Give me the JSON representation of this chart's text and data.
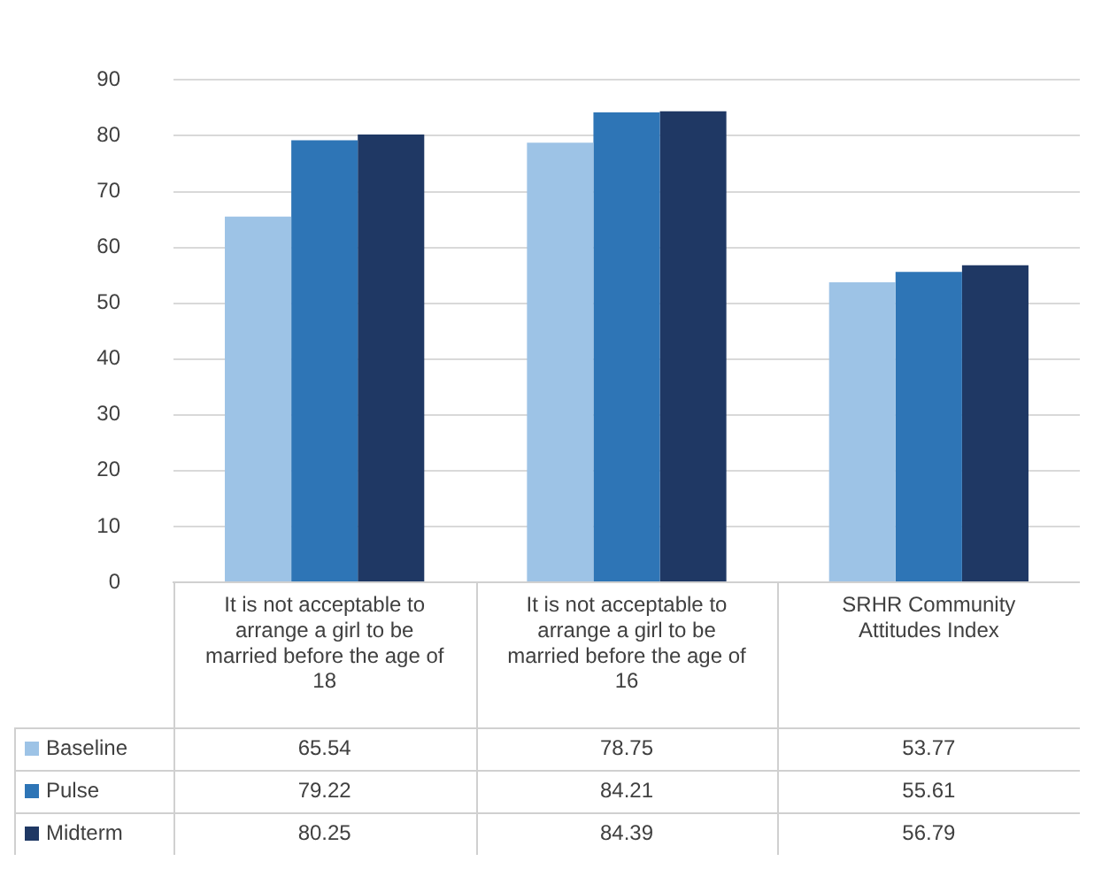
{
  "chart_data": {
    "type": "bar",
    "categories": [
      "It is not acceptable to arrange a girl to be married before the age of 18",
      "It is not acceptable to arrange a girl to be married before the age of 16",
      "SRHR Community Attitudes Index"
    ],
    "series": [
      {
        "name": "Baseline",
        "color": "#9dc3e6",
        "values": [
          65.54,
          78.75,
          53.77
        ]
      },
      {
        "name": "Pulse",
        "color": "#2e75b6",
        "values": [
          79.22,
          84.21,
          55.61
        ]
      },
      {
        "name": "Midterm",
        "color": "#1f3864",
        "values": [
          80.25,
          84.39,
          56.79
        ]
      }
    ],
    "ylim": [
      0,
      90
    ],
    "yticks": [
      0,
      10,
      20,
      30,
      40,
      50,
      60,
      70,
      80,
      90
    ],
    "grid": "y",
    "legend": "bottom",
    "data_labels": true
  }
}
